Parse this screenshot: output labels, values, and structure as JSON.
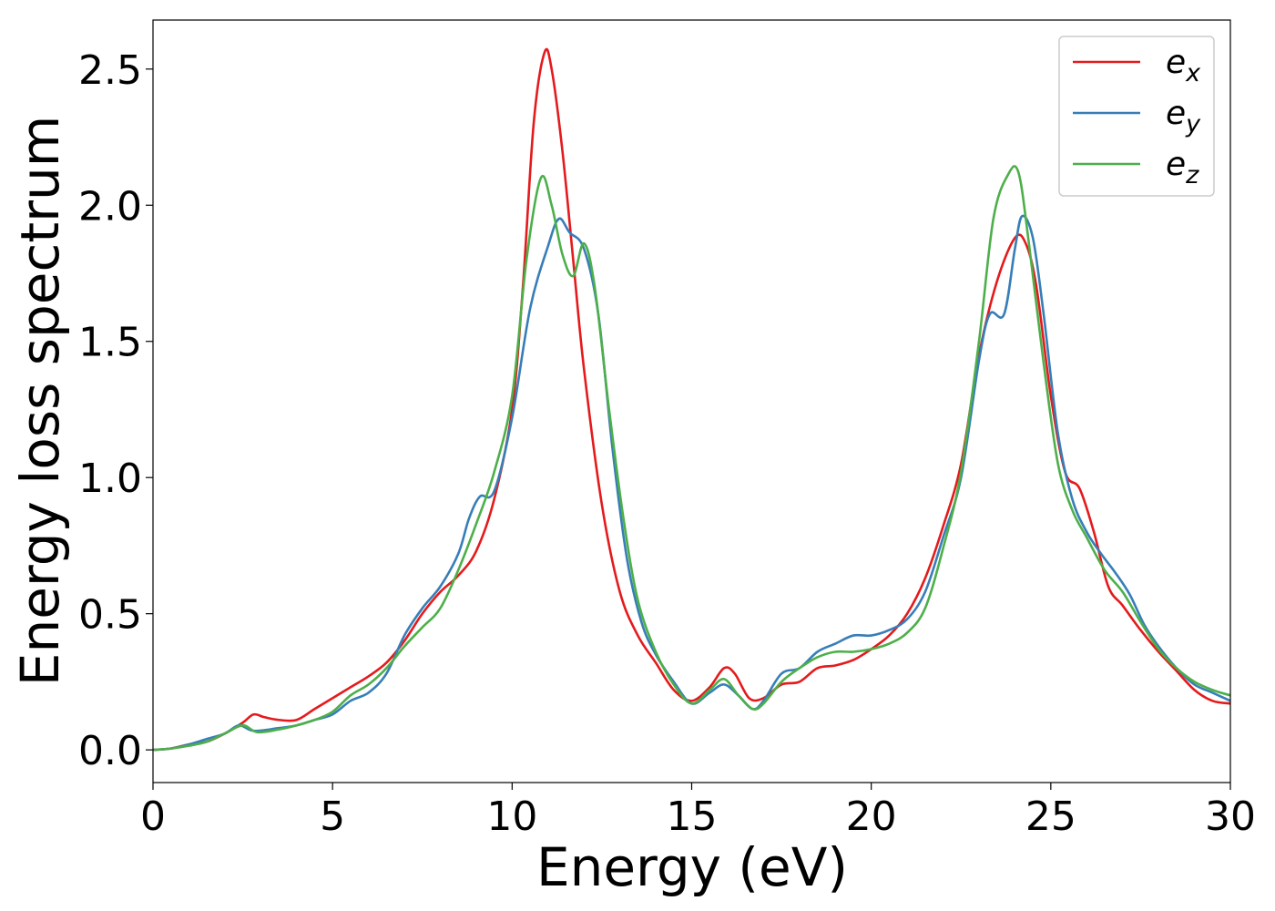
{
  "chart_data": {
    "type": "line",
    "title": "",
    "xlabel": "Energy (eV)",
    "ylabel": "Energy loss spectrum",
    "xlim": [
      0,
      30
    ],
    "ylim": [
      -0.12,
      2.68
    ],
    "xticks": [
      0,
      5,
      10,
      15,
      20,
      25,
      30
    ],
    "yticks": [
      0.0,
      0.5,
      1.0,
      1.5,
      2.0,
      2.5
    ],
    "xtick_labels": [
      "0",
      "5",
      "10",
      "15",
      "20",
      "25",
      "30"
    ],
    "ytick_labels": [
      "0.0",
      "0.5",
      "1.0",
      "1.5",
      "2.0",
      "2.5"
    ],
    "grid": false,
    "legend_position": "top-right",
    "series": [
      {
        "name_base": "e",
        "name_sub": "x",
        "color": "#e41a1c",
        "points": [
          [
            0,
            0
          ],
          [
            0.5,
            0.005
          ],
          [
            1,
            0.02
          ],
          [
            1.5,
            0.03
          ],
          [
            2,
            0.06
          ],
          [
            2.5,
            0.1
          ],
          [
            2.8,
            0.13
          ],
          [
            3.1,
            0.12
          ],
          [
            3.5,
            0.11
          ],
          [
            4,
            0.11
          ],
          [
            4.5,
            0.15
          ],
          [
            5,
            0.19
          ],
          [
            5.5,
            0.23
          ],
          [
            6,
            0.27
          ],
          [
            6.5,
            0.32
          ],
          [
            7,
            0.4
          ],
          [
            7.5,
            0.5
          ],
          [
            8,
            0.58
          ],
          [
            8.5,
            0.64
          ],
          [
            9,
            0.73
          ],
          [
            9.5,
            0.92
          ],
          [
            10,
            1.25
          ],
          [
            10.3,
            1.7
          ],
          [
            10.6,
            2.3
          ],
          [
            10.9,
            2.56
          ],
          [
            11.1,
            2.5
          ],
          [
            11.4,
            2.2
          ],
          [
            11.7,
            1.8
          ],
          [
            12,
            1.4
          ],
          [
            12.5,
            0.9
          ],
          [
            13,
            0.58
          ],
          [
            13.5,
            0.42
          ],
          [
            14,
            0.32
          ],
          [
            14.5,
            0.22
          ],
          [
            15,
            0.18
          ],
          [
            15.5,
            0.23
          ],
          [
            15.9,
            0.3
          ],
          [
            16.2,
            0.28
          ],
          [
            16.6,
            0.19
          ],
          [
            17,
            0.19
          ],
          [
            17.5,
            0.24
          ],
          [
            18,
            0.25
          ],
          [
            18.5,
            0.3
          ],
          [
            19,
            0.31
          ],
          [
            19.5,
            0.33
          ],
          [
            20,
            0.37
          ],
          [
            20.5,
            0.42
          ],
          [
            21,
            0.5
          ],
          [
            21.5,
            0.63
          ],
          [
            22,
            0.82
          ],
          [
            22.5,
            1.05
          ],
          [
            23,
            1.45
          ],
          [
            23.5,
            1.72
          ],
          [
            24,
            1.88
          ],
          [
            24.3,
            1.86
          ],
          [
            24.6,
            1.7
          ],
          [
            25,
            1.3
          ],
          [
            25.4,
            1.02
          ],
          [
            25.8,
            0.96
          ],
          [
            26.2,
            0.8
          ],
          [
            26.6,
            0.6
          ],
          [
            27,
            0.53
          ],
          [
            27.5,
            0.44
          ],
          [
            28,
            0.36
          ],
          [
            28.5,
            0.29
          ],
          [
            29,
            0.22
          ],
          [
            29.5,
            0.18
          ],
          [
            30,
            0.17
          ]
        ]
      },
      {
        "name_base": "e",
        "name_sub": "y",
        "color": "#377eb8",
        "points": [
          [
            0,
            0
          ],
          [
            0.5,
            0.005
          ],
          [
            1,
            0.02
          ],
          [
            1.5,
            0.04
          ],
          [
            2,
            0.06
          ],
          [
            2.4,
            0.09
          ],
          [
            2.8,
            0.07
          ],
          [
            3.5,
            0.08
          ],
          [
            4,
            0.09
          ],
          [
            4.5,
            0.11
          ],
          [
            5,
            0.13
          ],
          [
            5.5,
            0.18
          ],
          [
            6,
            0.21
          ],
          [
            6.5,
            0.28
          ],
          [
            7,
            0.42
          ],
          [
            7.5,
            0.52
          ],
          [
            8,
            0.6
          ],
          [
            8.5,
            0.72
          ],
          [
            8.8,
            0.85
          ],
          [
            9.1,
            0.93
          ],
          [
            9.5,
            0.95
          ],
          [
            10,
            1.22
          ],
          [
            10.5,
            1.62
          ],
          [
            11,
            1.85
          ],
          [
            11.3,
            1.95
          ],
          [
            11.6,
            1.9
          ],
          [
            12,
            1.84
          ],
          [
            12.4,
            1.6
          ],
          [
            12.8,
            1.1
          ],
          [
            13.2,
            0.7
          ],
          [
            13.6,
            0.47
          ],
          [
            14,
            0.35
          ],
          [
            14.5,
            0.25
          ],
          [
            15,
            0.17
          ],
          [
            15.5,
            0.21
          ],
          [
            15.9,
            0.24
          ],
          [
            16.3,
            0.2
          ],
          [
            16.7,
            0.15
          ],
          [
            17,
            0.18
          ],
          [
            17.5,
            0.28
          ],
          [
            18,
            0.3
          ],
          [
            18.5,
            0.36
          ],
          [
            19,
            0.39
          ],
          [
            19.5,
            0.42
          ],
          [
            20,
            0.42
          ],
          [
            20.5,
            0.44
          ],
          [
            21,
            0.48
          ],
          [
            21.5,
            0.58
          ],
          [
            22,
            0.78
          ],
          [
            22.5,
            1.0
          ],
          [
            23,
            1.43
          ],
          [
            23.3,
            1.6
          ],
          [
            23.7,
            1.6
          ],
          [
            24,
            1.84
          ],
          [
            24.2,
            1.96
          ],
          [
            24.5,
            1.88
          ],
          [
            24.8,
            1.6
          ],
          [
            25.2,
            1.16
          ],
          [
            25.6,
            0.92
          ],
          [
            26,
            0.8
          ],
          [
            26.4,
            0.72
          ],
          [
            26.8,
            0.65
          ],
          [
            27.2,
            0.57
          ],
          [
            27.6,
            0.46
          ],
          [
            28,
            0.38
          ],
          [
            28.5,
            0.3
          ],
          [
            29,
            0.24
          ],
          [
            29.5,
            0.21
          ],
          [
            30,
            0.18
          ]
        ]
      },
      {
        "name_base": "e",
        "name_sub": "z",
        "color": "#4daf4a",
        "points": [
          [
            0,
            0
          ],
          [
            0.5,
            0.005
          ],
          [
            1,
            0.015
          ],
          [
            1.5,
            0.03
          ],
          [
            2,
            0.06
          ],
          [
            2.5,
            0.09
          ],
          [
            2.9,
            0.065
          ],
          [
            3.5,
            0.075
          ],
          [
            4,
            0.09
          ],
          [
            4.5,
            0.11
          ],
          [
            5,
            0.14
          ],
          [
            5.5,
            0.2
          ],
          [
            6,
            0.24
          ],
          [
            6.5,
            0.3
          ],
          [
            7,
            0.38
          ],
          [
            7.5,
            0.45
          ],
          [
            8,
            0.52
          ],
          [
            8.5,
            0.66
          ],
          [
            9,
            0.83
          ],
          [
            9.5,
            1.02
          ],
          [
            10,
            1.3
          ],
          [
            10.4,
            1.8
          ],
          [
            10.8,
            2.1
          ],
          [
            11.1,
            2.0
          ],
          [
            11.4,
            1.82
          ],
          [
            11.7,
            1.74
          ],
          [
            12,
            1.86
          ],
          [
            12.3,
            1.7
          ],
          [
            12.7,
            1.25
          ],
          [
            13.1,
            0.85
          ],
          [
            13.5,
            0.55
          ],
          [
            14,
            0.36
          ],
          [
            14.5,
            0.24
          ],
          [
            15,
            0.17
          ],
          [
            15.5,
            0.22
          ],
          [
            15.9,
            0.26
          ],
          [
            16.3,
            0.2
          ],
          [
            16.7,
            0.15
          ],
          [
            17,
            0.17
          ],
          [
            17.5,
            0.25
          ],
          [
            18,
            0.3
          ],
          [
            18.5,
            0.34
          ],
          [
            19,
            0.36
          ],
          [
            19.5,
            0.36
          ],
          [
            20,
            0.37
          ],
          [
            20.5,
            0.39
          ],
          [
            21,
            0.43
          ],
          [
            21.5,
            0.52
          ],
          [
            22,
            0.74
          ],
          [
            22.5,
            1.02
          ],
          [
            23,
            1.5
          ],
          [
            23.4,
            1.95
          ],
          [
            23.8,
            2.11
          ],
          [
            24.1,
            2.12
          ],
          [
            24.4,
            1.85
          ],
          [
            24.8,
            1.42
          ],
          [
            25.2,
            1.05
          ],
          [
            25.6,
            0.88
          ],
          [
            26,
            0.78
          ],
          [
            26.5,
            0.66
          ],
          [
            27,
            0.58
          ],
          [
            27.5,
            0.47
          ],
          [
            28,
            0.37
          ],
          [
            28.5,
            0.3
          ],
          [
            29,
            0.25
          ],
          [
            29.5,
            0.22
          ],
          [
            30,
            0.2
          ]
        ]
      }
    ]
  }
}
